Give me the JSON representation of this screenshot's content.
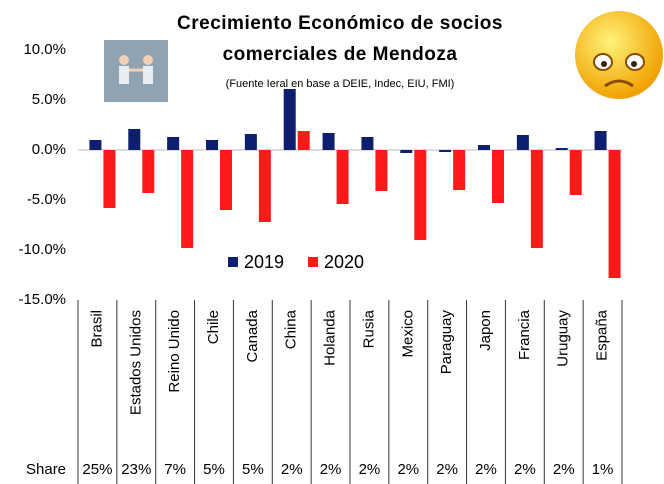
{
  "chart_data": {
    "type": "bar",
    "title": [
      "Crecimiento Económico de socios",
      "comerciales de Mendoza"
    ],
    "subtitle": "(Fuente Ieral en base a DEIE, Indec, EIU, FMI)",
    "categories": [
      "Brasil",
      "Estados Unidos",
      "Reino Unido",
      "Chile",
      "Canada",
      "China",
      "Holanda",
      "Rusia",
      "Mexico",
      "Paraguay",
      "Japon",
      "Francia",
      "Uruguay",
      "España"
    ],
    "series": [
      {
        "name": "2019",
        "color": "#0d1f6e",
        "values": [
          1.0,
          2.1,
          1.3,
          1.0,
          1.6,
          6.1,
          1.7,
          1.3,
          -0.3,
          -0.2,
          0.5,
          1.5,
          0.2,
          1.9
        ]
      },
      {
        "name": "2020",
        "color": "#ff1a1a",
        "values": [
          -5.8,
          -4.3,
          -9.8,
          -6.0,
          -7.2,
          1.9,
          -5.4,
          -4.1,
          -9.0,
          -4.0,
          -5.3,
          -9.8,
          -4.5,
          -12.8
        ]
      }
    ],
    "ylim": [
      -15,
      10
    ],
    "yticks": [
      {
        "value": 10,
        "label": "10.0%"
      },
      {
        "value": 5,
        "label": "5.0%"
      },
      {
        "value": 0,
        "label": "0.0%"
      },
      {
        "value": -5,
        "label": "-5.0%"
      },
      {
        "value": -10,
        "label": "-10.0%"
      },
      {
        "value": -15,
        "label": "-15.0%"
      }
    ],
    "share": {
      "label": "Share",
      "values": [
        "25%",
        "23%",
        "7%",
        "5%",
        "5%",
        "2%",
        "2%",
        "2%",
        "2%",
        "2%",
        "2%",
        "2%",
        "2%",
        "1%"
      ]
    }
  }
}
